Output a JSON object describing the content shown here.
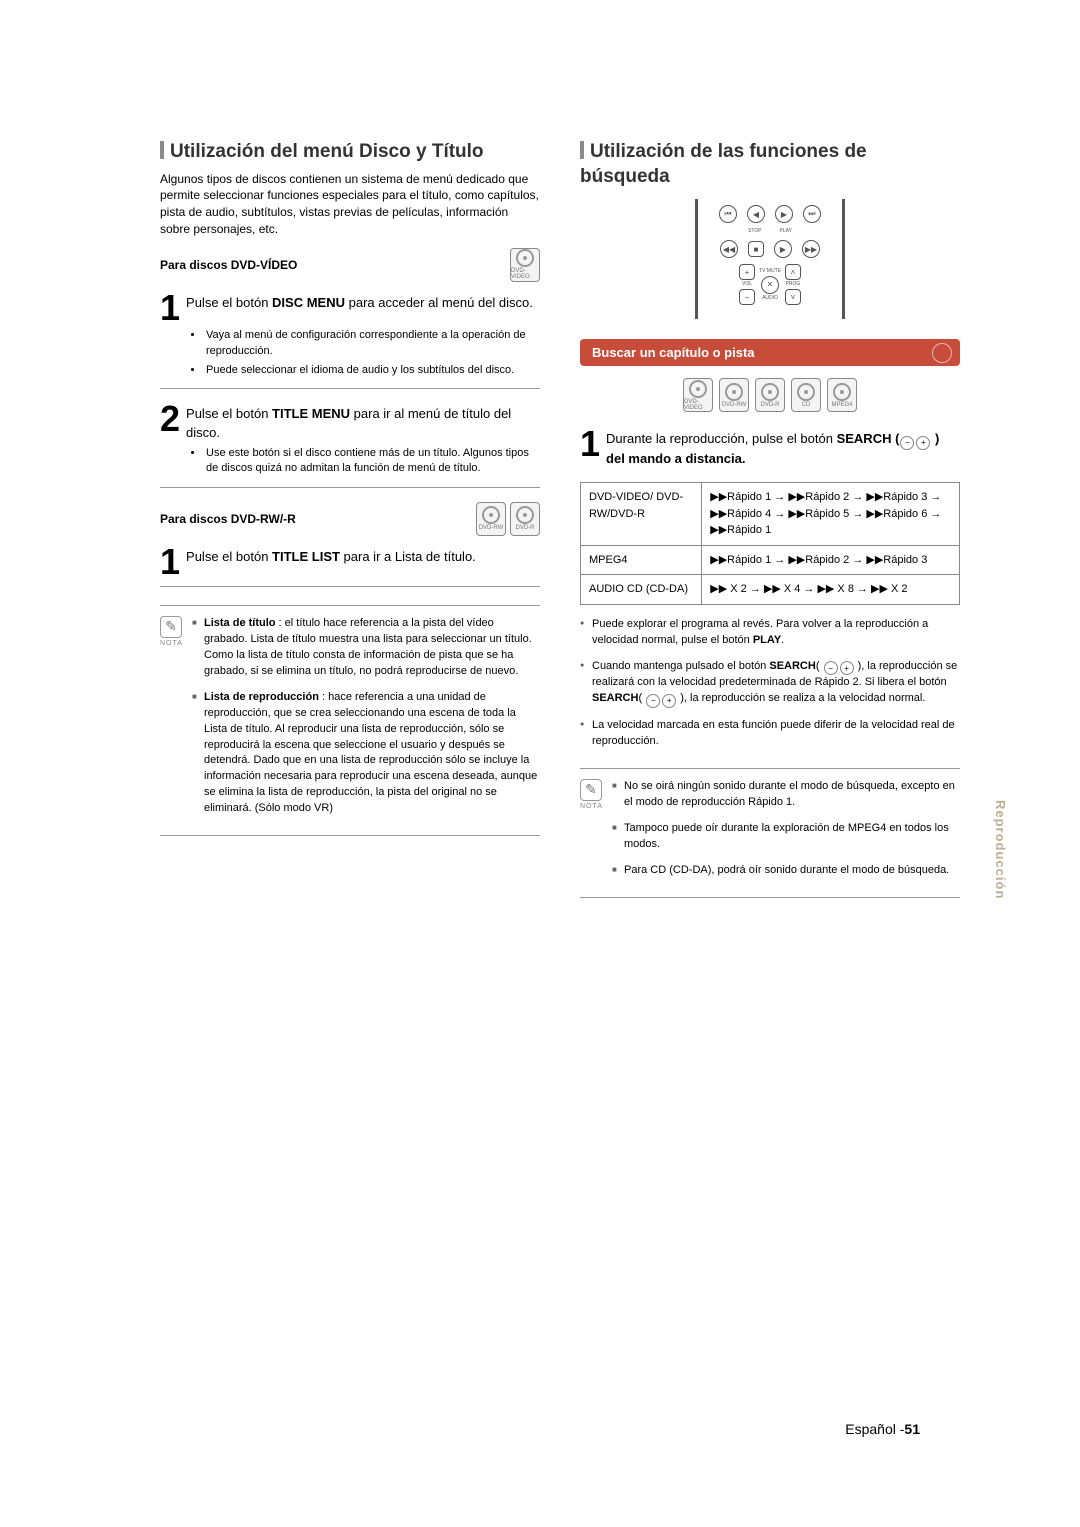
{
  "left": {
    "title": "Utilización del menú Disco y Título",
    "intro": "Algunos tipos de discos contienen un sistema de menú dedicado que permite seleccionar funciones especiales para el título, como capítulos, pista de audio, subtítulos, vistas previas de películas, información sobre personajes, etc.",
    "sub1": "Para discos DVD-VÍDEO",
    "badge1": "DVD-VIDEO",
    "step1_pre": "Pulse el botón ",
    "step1_b": "DISC MENU",
    "step1_post": " para acceder al menú del disco.",
    "step1_bul1": "Vaya al menú de configuración correspondiente a la operación de reproducción.",
    "step1_bul2": "Puede seleccionar el idioma de audio y los subtítulos del disco.",
    "step2_pre": "Pulse el botón ",
    "step2_b": "TITLE MENU",
    "step2_post": " para ir al menú de título del disco.",
    "step2_bul1": "Use este botón si el disco contiene más de un título. Algunos tipos de discos quizá no admitan la función de menú de título.",
    "sub2": "Para discos DVD-RW/-R",
    "badge2a": "DVD-RW",
    "badge2b": "DVD-R",
    "step3_pre": "Pulse el botón ",
    "step3_b": "TITLE LIST",
    "step3_post": " para ir a Lista de título.",
    "note1_b": "Lista de título",
    "note1": " : el título hace referencia a la pista del vídeo grabado. Lista de título muestra una lista para seleccionar un título. Como la lista de título consta de información de pista que se ha grabado, si se elimina un título, no podrá reproducirse de nuevo.",
    "note2_b": "Lista de reproducción",
    "note2": " : hace referencia a una unidad de reproducción, que se crea seleccionando una escena de toda la Lista de título. Al reproducir una lista de reproducción, sólo se reproducirá la escena que seleccione el usuario y después se detendrá. Dado que en una lista de reproducción sólo se incluye la información necesaria para reproducir una escena deseada, aunque se elimina la lista de reproducción, la pista del original no se eliminará. (Sólo modo VR)",
    "nota_label": "NOTA"
  },
  "right": {
    "title": "Utilización de las funciones de búsqueda",
    "heading": "Buscar un capítulo o pista",
    "badges": [
      "DVD-VIDEO",
      "DVD-RW",
      "DVD-R",
      "CD",
      "MPEG4"
    ],
    "step1_pre": "Durante la reproducción, pulse el botón ",
    "step1_b": "SEARCH (",
    "step1_post": " ) del mando a distancia.",
    "table": {
      "r1c1": "DVD-VIDEO/ DVD-RW/DVD-R",
      "r1c2": "▶▶Rápido 1 → ▶▶Rápido 2 → ▶▶Rápido 3 → ▶▶Rápido 4 → ▶▶Rápido 5 → ▶▶Rápido 6 → ▶▶Rápido 1",
      "r2c1": "MPEG4",
      "r2c2": "▶▶Rápido 1 → ▶▶Rápido 2 → ▶▶Rápido 3",
      "r3c1": "AUDIO CD (CD-DA)",
      "r3c2": "▶▶ X 2 → ▶▶  X 4 → ▶▶  X 8 → ▶▶  X 2"
    },
    "pb1_pre": "Puede explorar el programa al revés. Para volver a la reproducción a velocidad normal, pulse el botón ",
    "pb1_b": "PLAY",
    "pb2_pre": "Cuando mantenga pulsado el botón ",
    "pb2_b1": "SEARCH",
    "pb2_mid1": "( ",
    "pb2_mid2": " ), la reproducción se realizará con la velocidad predeterminada de Rápido 2. Si libera el botón ",
    "pb2_b2": "SEARCH",
    "pb2_post": "( ",
    "pb2_end": " ), la reproducción se realiza a la velocidad normal.",
    "pb3": "La velocidad marcada en esta función puede diferir de la velocidad real de reproducción.",
    "noteA": "No se oirá ningún sonido durante el modo de búsqueda, excepto en el modo de reproducción Rápido 1.",
    "noteB": "Tampoco puede oír durante la exploración de MPEG4 en todos los modos.",
    "noteC": "Para CD (CD-DA), podrá oír sonido durante el modo de búsqueda.",
    "nota_label": "NOTA",
    "remote_labels": {
      "stop": "STOP",
      "play": "PLAY",
      "tvmute": "TV MUTE",
      "vol": "VOL",
      "prog": "PROG",
      "audio": "AUDIO"
    }
  },
  "side_tab": "Reproducción",
  "footer_lang": "Español -",
  "footer_page": "51",
  "colors": {
    "accent": "#c74c3a",
    "sidetab": "#b9b094",
    "border": "#888888"
  }
}
